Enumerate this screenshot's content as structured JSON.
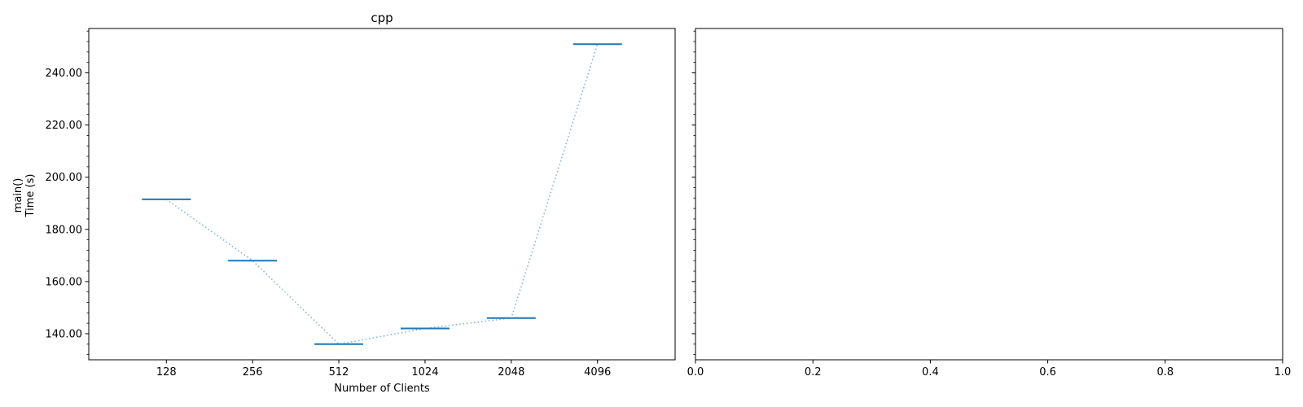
{
  "chart_data": [
    {
      "type": "line",
      "title": "cpp",
      "xlabel": "Number of Clients",
      "ylabel_lines": [
        "main()",
        "Time (s)"
      ],
      "categories": [
        "128",
        "256",
        "512",
        "1024",
        "2048",
        "4096"
      ],
      "values": [
        191.5,
        168.0,
        136.0,
        142.0,
        146.0,
        251.0
      ],
      "ylim": [
        130,
        257
      ],
      "yticks": [
        140,
        160,
        180,
        200,
        220,
        240
      ],
      "ytick_labels": [
        "140.00",
        "160.00",
        "180.00",
        "200.00",
        "220.00",
        "240.00"
      ],
      "grid": false,
      "legend": "none",
      "color": "#1f77b4"
    },
    {
      "type": "line",
      "title": "",
      "xlabel": "",
      "xlim": [
        0,
        1
      ],
      "xticks": [
        0,
        0.2,
        0.4,
        0.6,
        0.8,
        1.0
      ],
      "xtick_labels": [
        "0.0",
        "0.2",
        "0.4",
        "0.6",
        "0.8",
        "1.0"
      ],
      "ylim": [
        130,
        257
      ],
      "yticks": [
        140,
        160,
        180,
        200,
        220,
        240
      ],
      "series": [],
      "grid": false
    }
  ]
}
